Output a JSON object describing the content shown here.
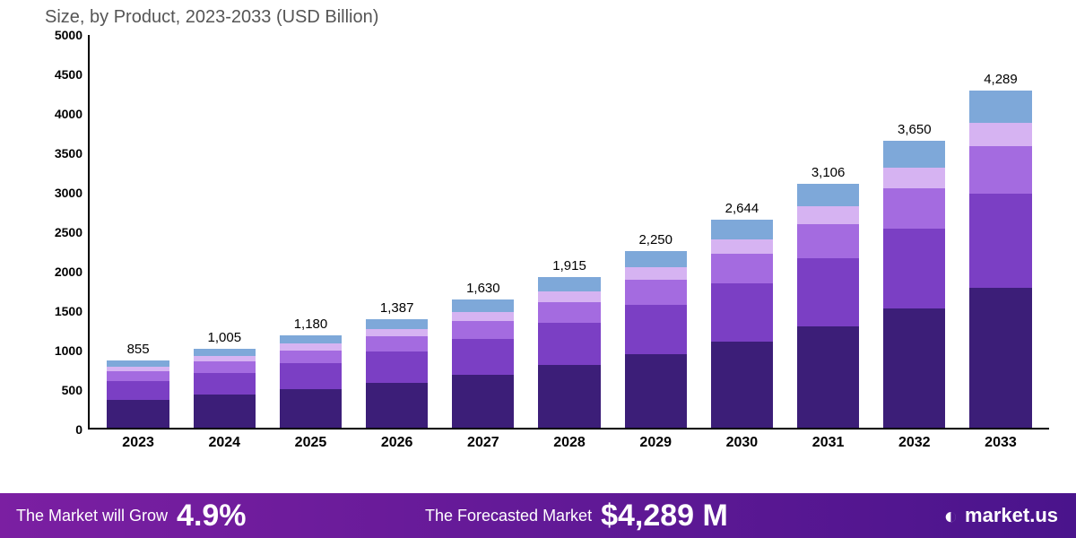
{
  "subtitle": "Size, by Product, 2023-2033 (USD Billion)",
  "chart": {
    "type": "stacked-bar",
    "background_color": "#ffffff",
    "axis_color": "#000000",
    "ylim": [
      0,
      5000
    ],
    "ytick_step": 500,
    "yticks": [
      "0",
      "500",
      "1000",
      "1500",
      "2000",
      "2500",
      "3000",
      "3500",
      "4000",
      "4500",
      "5000"
    ],
    "label_fontsize": 14,
    "title_fontsize": 20,
    "bar_width_pct": 72,
    "categories": [
      "2023",
      "2024",
      "2025",
      "2026",
      "2027",
      "2028",
      "2029",
      "2030",
      "2031",
      "2032",
      "2033"
    ],
    "totals": [
      855,
      1005,
      1180,
      1387,
      1630,
      1915,
      2250,
      2644,
      3106,
      3650,
      4289
    ],
    "total_labels": [
      "855",
      "1,005",
      "1,180",
      "1,387",
      "1,630",
      "1,915",
      "2,250",
      "2,644",
      "3,106",
      "3,650",
      "4,289"
    ],
    "segment_colors": [
      "#3c1e78",
      "#7b3fc4",
      "#a46be0",
      "#d6b3f2",
      "#7ea8d9"
    ],
    "segments": [
      [
        355,
        240,
        120,
        60,
        80
      ],
      [
        420,
        280,
        140,
        70,
        95
      ],
      [
        490,
        330,
        165,
        85,
        110
      ],
      [
        575,
        390,
        195,
        97,
        130
      ],
      [
        675,
        455,
        230,
        115,
        155
      ],
      [
        795,
        535,
        270,
        135,
        180
      ],
      [
        935,
        630,
        315,
        160,
        210
      ],
      [
        1100,
        740,
        370,
        185,
        249
      ],
      [
        1290,
        870,
        435,
        220,
        291
      ],
      [
        1515,
        1020,
        510,
        260,
        345
      ],
      [
        1780,
        1200,
        600,
        304,
        405
      ]
    ]
  },
  "footer": {
    "bg_gradient": [
      "#7b1fa2",
      "#4a148c"
    ],
    "grow_label": "The Market will Grow",
    "grow_value": "4.9%",
    "forecast_label": "The Forecasted Market",
    "forecast_value": "$4,289 M",
    "brand_icon": "◐",
    "brand_text": "market.us"
  }
}
